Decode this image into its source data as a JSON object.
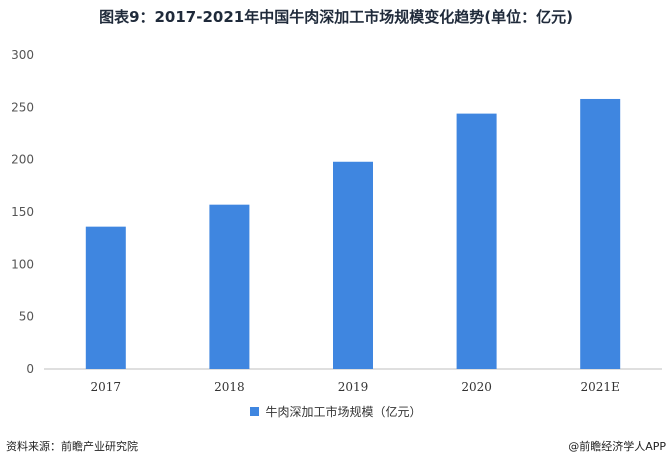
{
  "title": "图表9：2017-2021年中国牛肉深加工市场规模变化趋势(单位：亿元)",
  "chart_data": {
    "type": "bar",
    "categories": [
      "2017",
      "2018",
      "2019",
      "2020",
      "2021E"
    ],
    "series": [
      {
        "name": "牛肉深加工市场规模（亿元）",
        "values": [
          136,
          157,
          198,
          244,
          258
        ]
      }
    ],
    "ylim": [
      0,
      300
    ],
    "yticks": [
      0,
      50,
      100,
      150,
      200,
      250,
      300
    ],
    "grid": false,
    "legend_position": "bottom",
    "bar_color": "#3f86e0"
  },
  "legend_label": "牛肉深加工市场规模（亿元）",
  "source": "资料来源：前瞻产业研究院",
  "brand": "@前瞻经济学人APP"
}
